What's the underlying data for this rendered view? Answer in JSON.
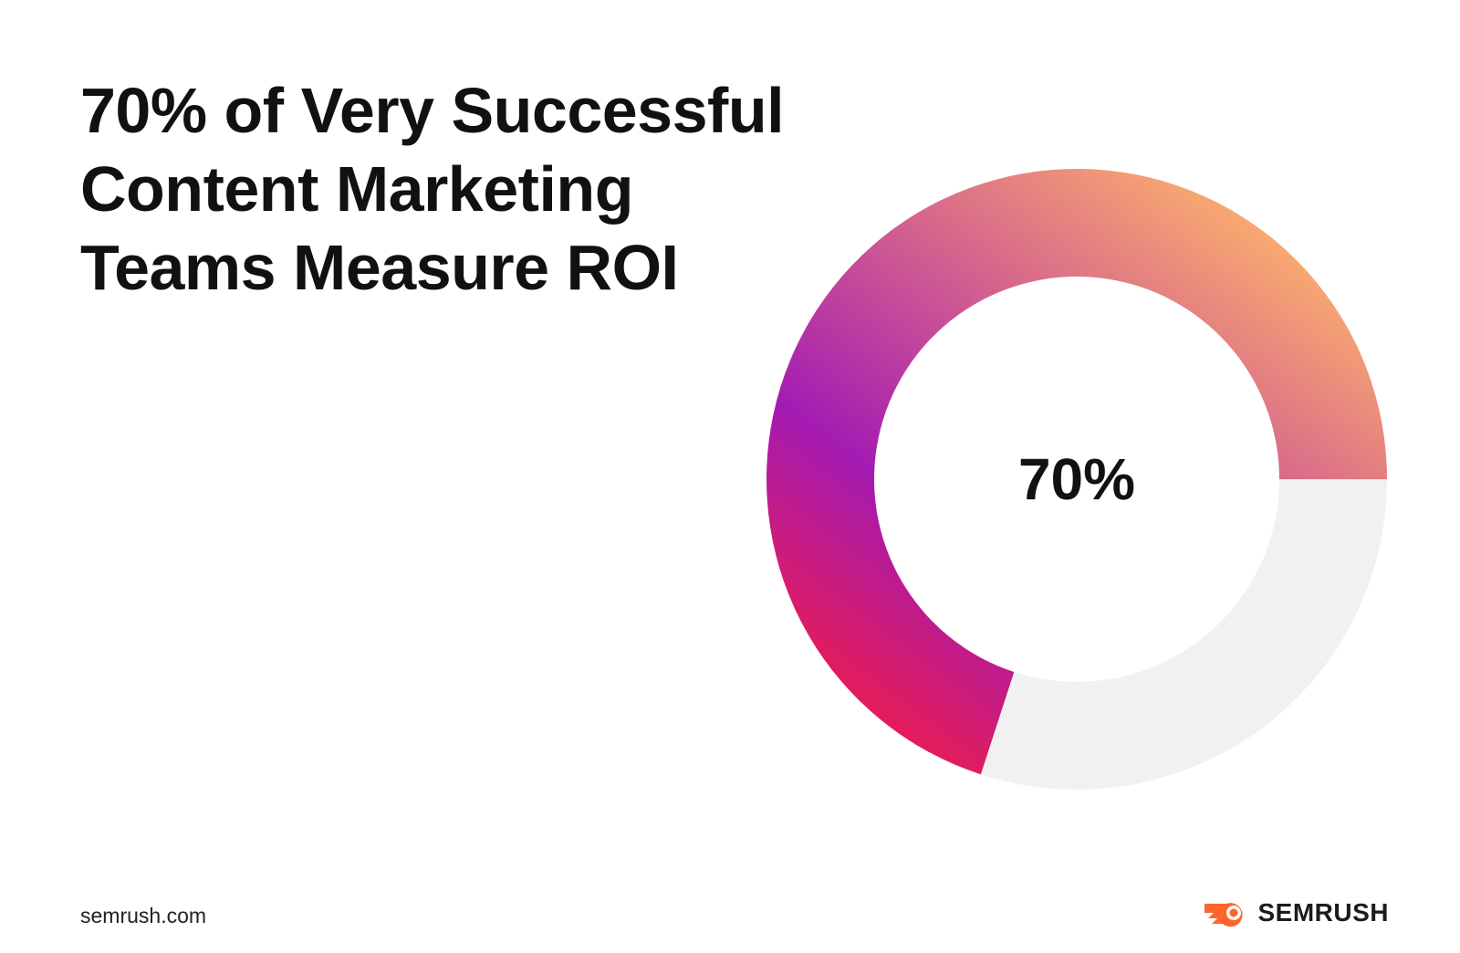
{
  "chart_data": {
    "type": "donut",
    "title": "70% of Very Successful\nContent Marketing\nTeams Measure ROI",
    "values": [
      70,
      30
    ],
    "value_labels": [
      "70%",
      null
    ],
    "colors": [
      "gradient",
      "#f1f1f1"
    ],
    "gradient": [
      "#ffb56b",
      "#d6668c",
      "#a41bb2",
      "#f21c46"
    ],
    "source": "semrush.com",
    "brand": "SEMRUSH"
  }
}
